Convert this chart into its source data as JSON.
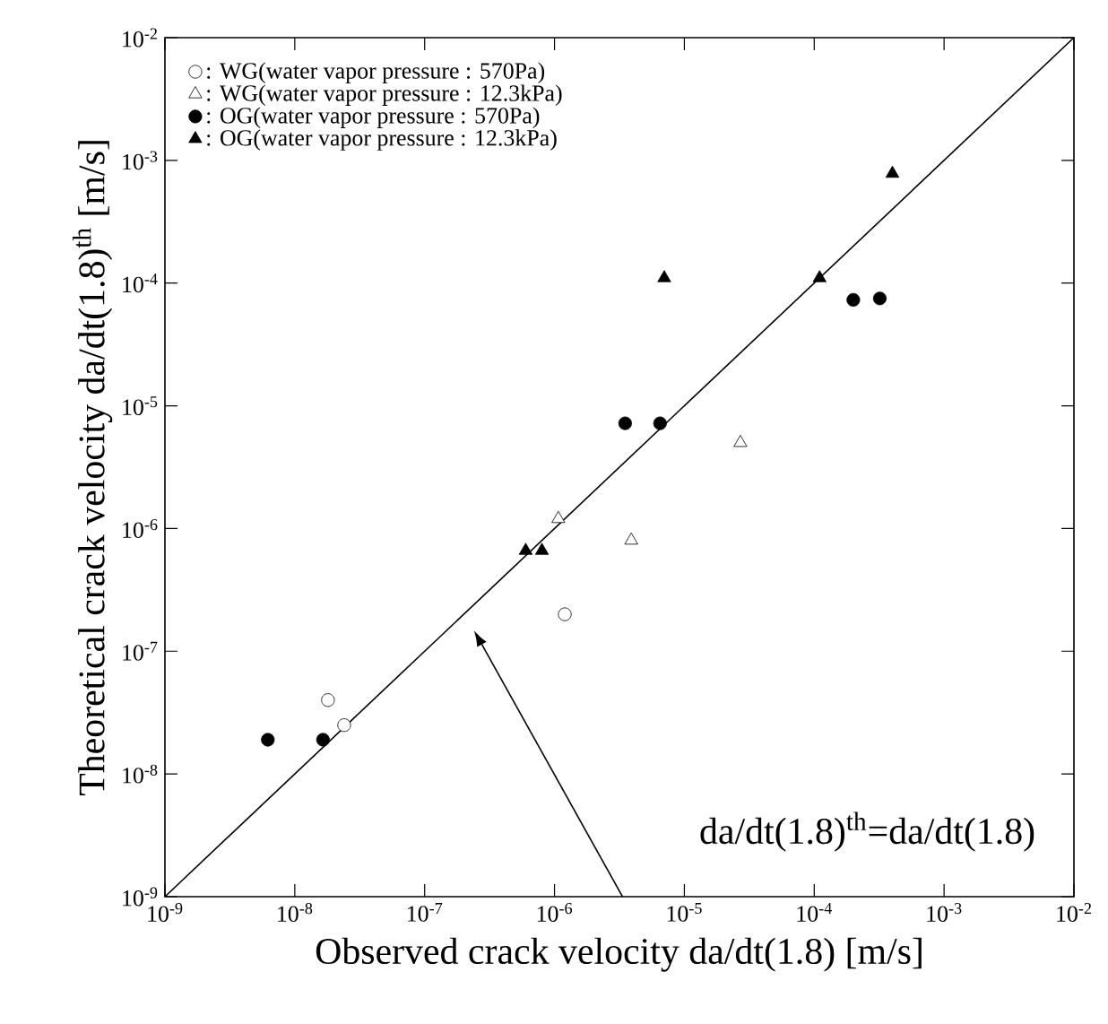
{
  "chart_data": {
    "type": "scatter",
    "xlabel": "Observed crack velocity da/dt(1.8) [m/s]",
    "ylabel": "Theoretical crack velocity da/dt(1.8)$^{th}$ [m/s]",
    "log": "xy",
    "xlim": [
      1e-09,
      0.01
    ],
    "ylim": [
      1e-09,
      0.01
    ],
    "xticks": [
      {
        "value": 1e-09,
        "label": "10$^{-9}$"
      },
      {
        "value": 1e-08,
        "label": "10$^{-8}$"
      },
      {
        "value": 1e-07,
        "label": "10$^{-7}$"
      },
      {
        "value": 1e-06,
        "label": "10$^{-6}$"
      },
      {
        "value": 1e-05,
        "label": "10$^{-5}$"
      },
      {
        "value": 0.0001,
        "label": "10$^{-4}$"
      },
      {
        "value": 0.001,
        "label": "10$^{-3}$"
      },
      {
        "value": 0.01,
        "label": "10$^{-2}$"
      }
    ],
    "yticks": [
      {
        "value": 1e-09,
        "label": "10$^{-9}$"
      },
      {
        "value": 1e-08,
        "label": "10$^{-8}$"
      },
      {
        "value": 1e-07,
        "label": "10$^{-7}$"
      },
      {
        "value": 1e-06,
        "label": "10$^{-6}$"
      },
      {
        "value": 1e-05,
        "label": "10$^{-5}$"
      },
      {
        "value": 0.0001,
        "label": "10$^{-4}$"
      },
      {
        "value": 0.001,
        "label": "10$^{-3}$"
      },
      {
        "value": 0.01,
        "label": "10$^{-2}$"
      }
    ],
    "grid": false,
    "legend": "top left",
    "series": [
      {
        "name": ": WG(water vapor pressure : 570Pa)",
        "color": "#ffffff",
        "marker": "circle",
        "x": [
          1.8e-08,
          2.4e-08,
          1.2e-06
        ],
        "values": [
          4e-08,
          2.5e-08,
          2e-07
        ]
      },
      {
        "name": ": WG(water vapor pressure : 12.3kPa)",
        "color": "#ffffff",
        "marker": "triangle",
        "x": [
          1.07e-06,
          3.9e-06,
          2.7e-05
        ],
        "values": [
          1.2e-06,
          8e-07,
          5e-06
        ]
      },
      {
        "name": ": OG(water vapor pressure : 570Pa)",
        "color": "#000000",
        "marker": "circle",
        "x": [
          6.2e-09,
          1.65e-08,
          3.5e-06,
          6.5e-06,
          0.0002,
          0.00032
        ],
        "values": [
          1.9e-08,
          1.9e-08,
          7.2e-06,
          7.2e-06,
          7.3e-05,
          7.5e-05
        ]
      },
      {
        "name": ": OG(water vapor pressure : 12.3kPa)",
        "color": "#000000",
        "marker": "triangle",
        "x": [
          6e-07,
          8e-07,
          7e-06,
          0.00011,
          0.0004
        ],
        "values": [
          6.6e-07,
          6.6e-07,
          0.00011,
          0.00011,
          0.00078
        ]
      },
      {
        "type": "line",
        "color": "#000000",
        "marker": "none",
        "line_style": "solid",
        "x": [
          1e-09,
          0.01
        ],
        "values": [
          1e-09,
          0.01
        ]
      }
    ],
    "annotations": [
      "da/dt(1.8)$^{th}$=da/dt(1.8)"
    ]
  }
}
